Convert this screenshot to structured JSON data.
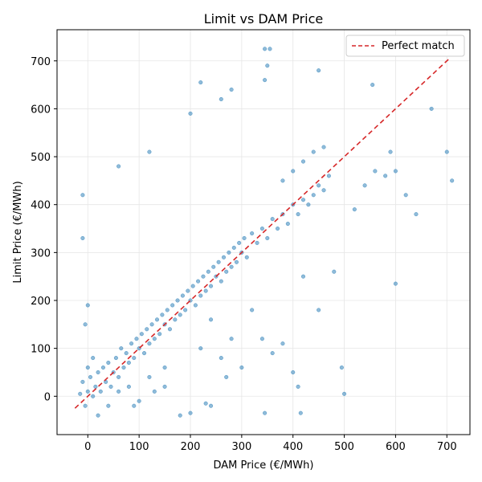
{
  "chart_data": {
    "type": "scatter",
    "title": "Limit vs DAM Price",
    "xlabel": "DAM Price (€/MWh)",
    "ylabel": "Limit Price (€/MWh)",
    "xlim": [
      -60,
      745
    ],
    "ylim": [
      -80,
      765
    ],
    "x_ticks": [
      0,
      100,
      200,
      300,
      400,
      500,
      600,
      700
    ],
    "y_ticks": [
      0,
      100,
      200,
      300,
      400,
      500,
      600,
      700
    ],
    "grid": true,
    "legend": {
      "placement": "top-right",
      "entries": [
        "Perfect match"
      ]
    },
    "series": [
      {
        "kind": "scatter",
        "color": "#1f77b4",
        "points": [
          [
            -15,
            5
          ],
          [
            -10,
            30
          ],
          [
            -5,
            -20
          ],
          [
            0,
            10
          ],
          [
            0,
            60
          ],
          [
            5,
            40
          ],
          [
            10,
            0
          ],
          [
            10,
            80
          ],
          [
            15,
            20
          ],
          [
            20,
            50
          ],
          [
            25,
            10
          ],
          [
            30,
            60
          ],
          [
            35,
            30
          ],
          [
            40,
            70
          ],
          [
            45,
            20
          ],
          [
            50,
            50
          ],
          [
            55,
            80
          ],
          [
            60,
            40
          ],
          [
            65,
            100
          ],
          [
            70,
            60
          ],
          [
            75,
            90
          ],
          [
            80,
            70
          ],
          [
            85,
            110
          ],
          [
            90,
            80
          ],
          [
            95,
            120
          ],
          [
            100,
            100
          ],
          [
            105,
            130
          ],
          [
            110,
            90
          ],
          [
            115,
            140
          ],
          [
            120,
            110
          ],
          [
            125,
            150
          ],
          [
            130,
            120
          ],
          [
            135,
            160
          ],
          [
            140,
            130
          ],
          [
            145,
            170
          ],
          [
            150,
            150
          ],
          [
            155,
            180
          ],
          [
            160,
            140
          ],
          [
            165,
            190
          ],
          [
            170,
            160
          ],
          [
            175,
            200
          ],
          [
            180,
            170
          ],
          [
            185,
            210
          ],
          [
            190,
            180
          ],
          [
            195,
            220
          ],
          [
            200,
            200
          ],
          [
            205,
            230
          ],
          [
            210,
            190
          ],
          [
            215,
            240
          ],
          [
            220,
            210
          ],
          [
            225,
            250
          ],
          [
            230,
            220
          ],
          [
            235,
            260
          ],
          [
            240,
            230
          ],
          [
            245,
            270
          ],
          [
            250,
            250
          ],
          [
            255,
            280
          ],
          [
            260,
            240
          ],
          [
            265,
            290
          ],
          [
            270,
            260
          ],
          [
            275,
            300
          ],
          [
            280,
            270
          ],
          [
            285,
            310
          ],
          [
            290,
            280
          ],
          [
            295,
            320
          ],
          [
            300,
            300
          ],
          [
            305,
            330
          ],
          [
            310,
            290
          ],
          [
            320,
            340
          ],
          [
            330,
            320
          ],
          [
            340,
            350
          ],
          [
            350,
            330
          ],
          [
            360,
            370
          ],
          [
            370,
            350
          ],
          [
            380,
            380
          ],
          [
            390,
            360
          ],
          [
            400,
            400
          ],
          [
            410,
            380
          ],
          [
            420,
            410
          ],
          [
            430,
            400
          ],
          [
            440,
            420
          ],
          [
            450,
            440
          ],
          [
            460,
            430
          ],
          [
            470,
            460
          ],
          [
            -10,
            420
          ],
          [
            -10,
            330
          ],
          [
            0,
            190
          ],
          [
            -5,
            150
          ],
          [
            60,
            480
          ],
          [
            120,
            510
          ],
          [
            200,
            590
          ],
          [
            220,
            655
          ],
          [
            260,
            620
          ],
          [
            280,
            640
          ],
          [
            345,
            725
          ],
          [
            355,
            725
          ],
          [
            345,
            660
          ],
          [
            350,
            690
          ],
          [
            450,
            680
          ],
          [
            555,
            650
          ],
          [
            590,
            510
          ],
          [
            600,
            470
          ],
          [
            620,
            420
          ],
          [
            640,
            380
          ],
          [
            670,
            600
          ],
          [
            700,
            510
          ],
          [
            710,
            450
          ],
          [
            600,
            235
          ],
          [
            500,
            5
          ],
          [
            495,
            60
          ],
          [
            415,
            -35
          ],
          [
            410,
            20
          ],
          [
            345,
            -35
          ],
          [
            380,
            110
          ],
          [
            400,
            50
          ],
          [
            180,
            -40
          ],
          [
            200,
            -35
          ],
          [
            230,
            -15
          ],
          [
            240,
            -20
          ],
          [
            270,
            40
          ],
          [
            150,
            20
          ],
          [
            130,
            10
          ],
          [
            100,
            -10
          ],
          [
            90,
            -20
          ],
          [
            380,
            450
          ],
          [
            400,
            470
          ],
          [
            420,
            490
          ],
          [
            440,
            510
          ],
          [
            460,
            520
          ],
          [
            520,
            390
          ],
          [
            540,
            440
          ],
          [
            560,
            470
          ],
          [
            580,
            460
          ],
          [
            480,
            260
          ],
          [
            450,
            180
          ],
          [
            420,
            250
          ],
          [
            360,
            90
          ],
          [
            340,
            120
          ],
          [
            300,
            60
          ],
          [
            320,
            180
          ],
          [
            280,
            120
          ],
          [
            260,
            80
          ],
          [
            240,
            160
          ],
          [
            220,
            100
          ],
          [
            150,
            60
          ],
          [
            120,
            40
          ],
          [
            80,
            20
          ],
          [
            60,
            10
          ],
          [
            40,
            -20
          ],
          [
            20,
            -40
          ]
        ]
      },
      {
        "kind": "line",
        "name": "Perfect match",
        "color": "#d62728",
        "style": "dashed",
        "points": [
          [
            -25,
            -25
          ],
          [
            705,
            705
          ]
        ]
      }
    ]
  }
}
